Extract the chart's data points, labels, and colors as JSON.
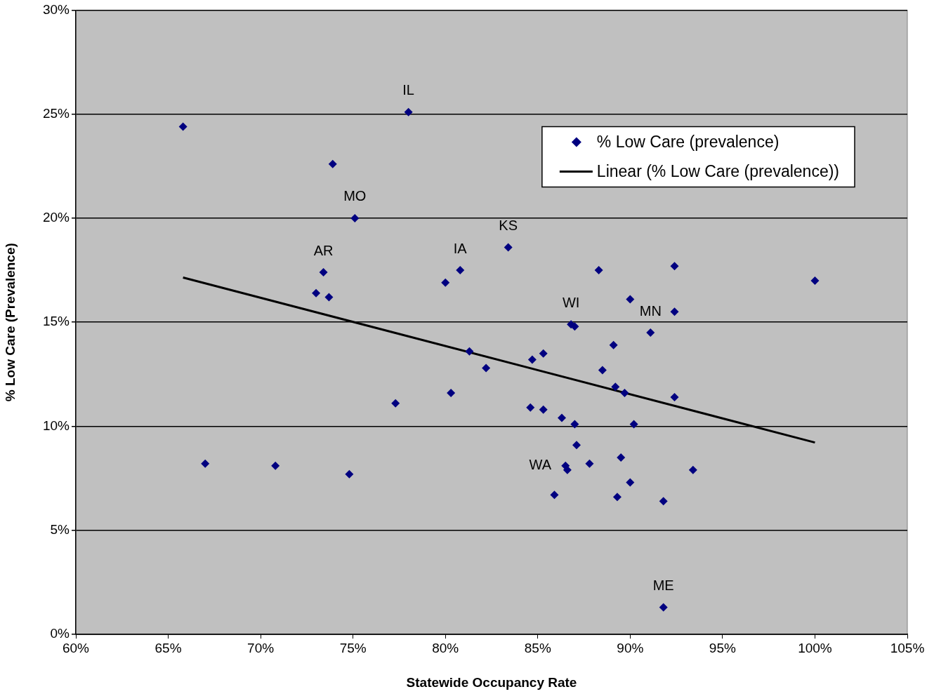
{
  "chart_data": {
    "type": "scatter",
    "xlabel": "Statewide Occupancy Rate",
    "ylabel": "% Low Care (Prevalence)",
    "xlim": [
      60,
      105
    ],
    "ylim": [
      0,
      30
    ],
    "xticks": [
      {
        "value": 60,
        "label": "60%"
      },
      {
        "value": 65,
        "label": "65%"
      },
      {
        "value": 70,
        "label": "70%"
      },
      {
        "value": 75,
        "label": "75%"
      },
      {
        "value": 80,
        "label": "80%"
      },
      {
        "value": 85,
        "label": "85%"
      },
      {
        "value": 90,
        "label": "90%"
      },
      {
        "value": 95,
        "label": "95%"
      },
      {
        "value": 100,
        "label": "100%"
      },
      {
        "value": 105,
        "label": "105%"
      }
    ],
    "yticks": [
      {
        "value": 0,
        "label": "0%"
      },
      {
        "value": 5,
        "label": "5%"
      },
      {
        "value": 10,
        "label": "10%"
      },
      {
        "value": 15,
        "label": "15%"
      },
      {
        "value": 20,
        "label": "20%"
      },
      {
        "value": 25,
        "label": "25%"
      },
      {
        "value": 30,
        "label": "30%"
      }
    ],
    "grid": "y",
    "legend": "top right",
    "marker": "diamond",
    "series": [
      {
        "name": "% Low Care (prevalence)",
        "type": "scatter",
        "color": "#000080",
        "x": [
          65.8,
          67.0,
          70.8,
          73.0,
          73.4,
          73.7,
          73.9,
          74.8,
          75.1,
          77.3,
          78.0,
          80.0,
          80.3,
          80.8,
          81.3,
          82.2,
          83.4,
          84.6,
          84.7,
          85.3,
          85.3,
          85.9,
          86.3,
          86.5,
          86.6,
          86.8,
          87.0,
          87.0,
          87.1,
          87.8,
          88.3,
          88.5,
          89.1,
          89.2,
          89.3,
          89.5,
          89.7,
          90.0,
          90.0,
          90.2,
          91.1,
          91.8,
          91.8,
          92.4,
          92.4,
          92.4,
          93.4,
          100.0
        ],
        "values": [
          24.4,
          8.2,
          8.1,
          16.4,
          17.4,
          16.2,
          22.6,
          7.7,
          20.0,
          11.1,
          25.1,
          16.9,
          11.6,
          17.5,
          13.6,
          12.8,
          18.6,
          10.9,
          13.2,
          10.8,
          13.5,
          6.7,
          10.4,
          8.1,
          7.9,
          14.9,
          14.8,
          10.1,
          9.1,
          8.2,
          17.5,
          12.7,
          13.9,
          11.9,
          6.6,
          8.5,
          11.6,
          16.1,
          7.3,
          10.1,
          14.5,
          6.4,
          1.3,
          17.7,
          11.4,
          15.5,
          7.9,
          17.0
        ]
      },
      {
        "name": "Linear (% Low Care (prevalence))",
        "type": "line",
        "color": "#000000",
        "marker": "none",
        "x": [
          65.8,
          100.0
        ],
        "values": [
          17.15,
          9.22
        ]
      }
    ],
    "annotations": [
      {
        "text": "IL",
        "x": 78.0,
        "y": 25.1
      },
      {
        "text": "MO",
        "x": 75.1,
        "y": 20.0
      },
      {
        "text": "AR",
        "x": 73.4,
        "y": 17.4
      },
      {
        "text": "IA",
        "x": 80.8,
        "y": 17.5
      },
      {
        "text": "KS",
        "x": 83.4,
        "y": 18.6
      },
      {
        "text": "WI",
        "x": 86.8,
        "y": 14.9
      },
      {
        "text": "MN",
        "x": 91.1,
        "y": 14.5
      },
      {
        "text": "WA",
        "x": 86.5,
        "y": 8.1
      },
      {
        "text": "ME",
        "x": 91.8,
        "y": 1.3
      }
    ]
  }
}
